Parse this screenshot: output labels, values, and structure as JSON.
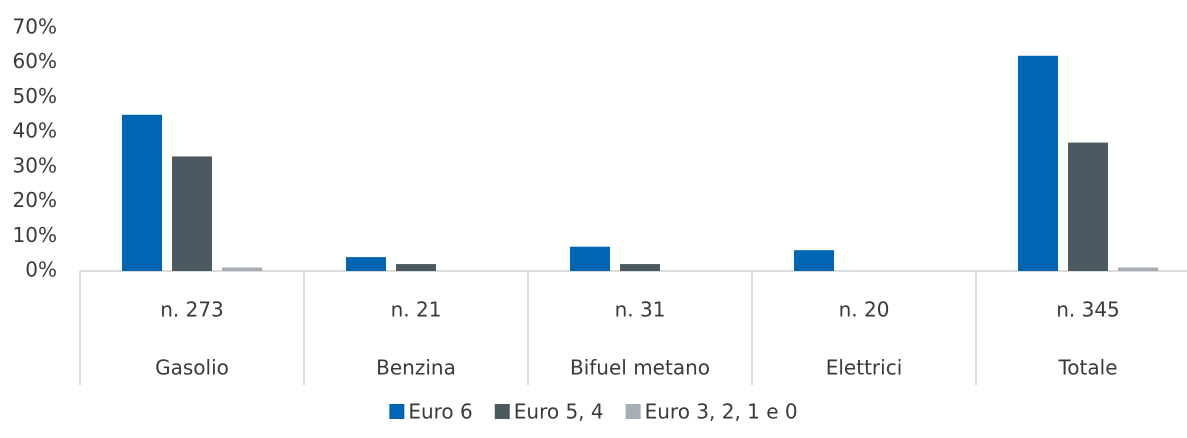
{
  "chart_data": {
    "type": "bar",
    "categories": [
      "Gasolio",
      "Benzina",
      "Bifuel metano",
      "Elettrici",
      "Totale"
    ],
    "category_counts": [
      "n. 273",
      "n. 21",
      "n. 31",
      "n. 20",
      "n. 345"
    ],
    "series": [
      {
        "name": "Euro 6",
        "color": "#0066b3",
        "values": [
          45,
          4,
          7,
          6,
          62
        ]
      },
      {
        "name": "Euro 5, 4",
        "color": "#4d5960",
        "values": [
          33,
          2,
          2,
          0,
          37
        ]
      },
      {
        "name": "Euro 3, 2, 1 e 0",
        "color": "#a6adb4",
        "values": [
          1,
          0,
          0,
          0,
          1
        ]
      }
    ],
    "ylim": [
      0,
      70
    ],
    "yticks": [
      {
        "value": 0,
        "label": "0%"
      },
      {
        "value": 10,
        "label": "10%"
      },
      {
        "value": 20,
        "label": "20%"
      },
      {
        "value": 30,
        "label": "30%"
      },
      {
        "value": 40,
        "label": "40%"
      },
      {
        "value": 50,
        "label": "50%"
      },
      {
        "value": 60,
        "label": "60%"
      },
      {
        "value": 70,
        "label": "70%"
      }
    ],
    "grid": false,
    "legend": "bottom"
  }
}
